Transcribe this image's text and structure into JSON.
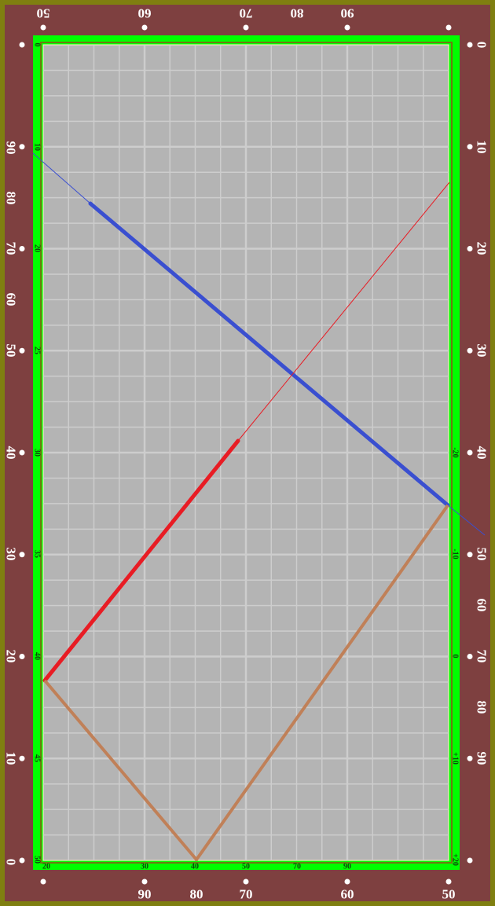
{
  "colors": {
    "frame": "#7f7f10",
    "rail": "#7e4040",
    "cushion": "#00ff00",
    "felt": "#b4b4b4",
    "grid": "#cdcdcd",
    "diamond": "#ffffff",
    "cue_path": "#3a4fd0",
    "object_path": "#e81c24",
    "bank_path": "#c08058"
  },
  "rail_labels": {
    "top": [
      "50",
      "60",
      "70",
      "80",
      "90"
    ],
    "bottom": [
      "90",
      "80",
      "70",
      "60",
      "50"
    ],
    "left": [
      "90",
      "80",
      "70",
      "60",
      "50",
      "40",
      "30",
      "20",
      "10",
      "0"
    ],
    "right": [
      "0",
      "10",
      "20",
      "30",
      "40",
      "50",
      "60",
      "70",
      "80",
      "90"
    ]
  },
  "cushion_labels": {
    "left": [
      "0",
      "10",
      "20",
      "25",
      "30",
      "35",
      "40",
      "45",
      "50"
    ],
    "right": [
      "-20",
      "-10",
      "0",
      "+10",
      "+20"
    ],
    "bottom": [
      "20",
      "30",
      "40",
      "50",
      "70",
      "90"
    ]
  },
  "paths": [
    {
      "name": "blue-path",
      "color_key": "cue_path"
    },
    {
      "name": "red-path",
      "color_key": "object_path"
    },
    {
      "name": "brown-path",
      "color_key": "bank_path"
    }
  ]
}
